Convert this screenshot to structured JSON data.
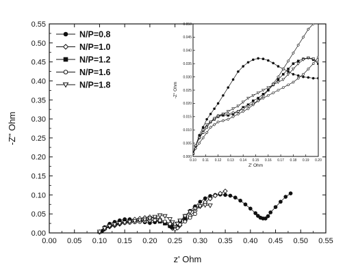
{
  "chart_data": {
    "type": "scatter",
    "title": "",
    "xlabel": "z' Ohm",
    "ylabel": "-Z'' Ohm",
    "xlim": [
      0.0,
      0.55
    ],
    "ylim": [
      0.0,
      0.55
    ],
    "xticks": [
      "0.00",
      "0.05",
      "0.10",
      "0.15",
      "0.20",
      "0.25",
      "0.30",
      "0.35",
      "0.40",
      "0.45",
      "0.50",
      "0.55"
    ],
    "yticks": [
      "0.00",
      "0.05",
      "0.10",
      "0.15",
      "0.20",
      "0.25",
      "0.30",
      "0.35",
      "0.40",
      "0.45",
      "0.50",
      "0.55"
    ],
    "grid": false,
    "legend": "top-left",
    "series": [
      {
        "name": "N/P=0.8",
        "marker": "filled-circle",
        "x": [
          0.105,
          0.11,
          0.12,
          0.13,
          0.14,
          0.15,
          0.16,
          0.17,
          0.18,
          0.19,
          0.2,
          0.21,
          0.22,
          0.23,
          0.24,
          0.245,
          0.25,
          0.255,
          0.26,
          0.27,
          0.28,
          0.29,
          0.3,
          0.31,
          0.32,
          0.33,
          0.34,
          0.35,
          0.36,
          0.37,
          0.38,
          0.39,
          0.4,
          0.41,
          0.415,
          0.42,
          0.425,
          0.43,
          0.435,
          0.44,
          0.45,
          0.46,
          0.47,
          0.48
        ],
        "y": [
          0.005,
          0.015,
          0.024,
          0.029,
          0.033,
          0.036,
          0.036,
          0.034,
          0.031,
          0.028,
          0.026,
          0.028,
          0.032,
          0.03,
          0.022,
          0.016,
          0.012,
          0.018,
          0.03,
          0.045,
          0.058,
          0.07,
          0.082,
          0.091,
          0.097,
          0.1,
          0.101,
          0.1,
          0.098,
          0.093,
          0.085,
          0.075,
          0.064,
          0.052,
          0.045,
          0.04,
          0.038,
          0.038,
          0.044,
          0.054,
          0.068,
          0.082,
          0.095,
          0.104
        ]
      },
      {
        "name": "N/P=1.0",
        "marker": "open-diamond",
        "x": [
          0.1,
          0.11,
          0.12,
          0.13,
          0.14,
          0.15,
          0.16,
          0.17,
          0.18,
          0.19,
          0.2,
          0.21,
          0.22,
          0.23,
          0.24,
          0.245,
          0.25,
          0.255,
          0.26,
          0.27,
          0.28,
          0.29,
          0.3,
          0.31,
          0.32,
          0.33,
          0.34,
          0.35
        ],
        "y": [
          0.002,
          0.01,
          0.016,
          0.019,
          0.023,
          0.027,
          0.032,
          0.036,
          0.038,
          0.04,
          0.042,
          0.04,
          0.036,
          0.028,
          0.018,
          0.012,
          0.01,
          0.013,
          0.02,
          0.032,
          0.045,
          0.058,
          0.07,
          0.081,
          0.09,
          0.098,
          0.104,
          0.11
        ]
      },
      {
        "name": "N/P=1.2",
        "marker": "filled-square",
        "x": [
          0.1,
          0.11,
          0.12,
          0.13,
          0.14,
          0.15,
          0.16,
          0.17,
          0.18,
          0.19,
          0.2,
          0.21,
          0.22,
          0.23,
          0.24,
          0.245,
          0.25,
          0.255,
          0.26,
          0.27
        ],
        "y": [
          0.003,
          0.012,
          0.019,
          0.023,
          0.027,
          0.029,
          0.03,
          0.031,
          0.032,
          0.033,
          0.034,
          0.033,
          0.03,
          0.025,
          0.018,
          0.015,
          0.018,
          0.024,
          0.032,
          0.038
        ]
      },
      {
        "name": "N/P=1.6",
        "marker": "open-circle",
        "x": [
          0.1,
          0.11,
          0.12,
          0.13,
          0.14,
          0.15,
          0.16,
          0.17,
          0.18,
          0.19,
          0.2,
          0.21,
          0.22,
          0.23,
          0.24,
          0.25,
          0.26,
          0.27,
          0.28,
          0.29
        ],
        "y": [
          0.002,
          0.011,
          0.018,
          0.021,
          0.024,
          0.026,
          0.027,
          0.028,
          0.029,
          0.031,
          0.033,
          0.034,
          0.033,
          0.03,
          0.024,
          0.018,
          0.022,
          0.03,
          0.04,
          0.05
        ]
      },
      {
        "name": "N/P=1.8",
        "marker": "open-triangle-down",
        "x": [
          0.1,
          0.11,
          0.12,
          0.13,
          0.14,
          0.15,
          0.16,
          0.17,
          0.18,
          0.19,
          0.2,
          0.21,
          0.22,
          0.23,
          0.24,
          0.245,
          0.25,
          0.255,
          0.26,
          0.27,
          0.28,
          0.29,
          0.3,
          0.31,
          0.32
        ],
        "y": [
          0.003,
          0.012,
          0.018,
          0.022,
          0.025,
          0.027,
          0.029,
          0.031,
          0.033,
          0.035,
          0.038,
          0.042,
          0.046,
          0.044,
          0.036,
          0.028,
          0.022,
          0.024,
          0.032,
          0.044,
          0.055,
          0.064,
          0.07,
          0.073,
          0.072
        ]
      }
    ],
    "inset": {
      "xlabel": "Z' Ohm",
      "ylabel": "-Z'' Ohm",
      "xlim": [
        0.1,
        0.2
      ],
      "ylim": [
        0.0,
        0.05
      ],
      "xticks": [
        "0.10",
        "0.11",
        "0.12",
        "0.13",
        "0.14",
        "0.15",
        "0.16",
        "0.17",
        "0.18",
        "0.19",
        "0.20"
      ],
      "yticks": [
        "0.000",
        "0.005",
        "0.010",
        "0.015",
        "0.020",
        "0.025",
        "0.030",
        "0.035",
        "0.040",
        "0.045",
        "0.050"
      ],
      "series": [
        {
          "name": "N/P=0.8",
          "marker": "filled-circle",
          "x": [
            0.1,
            0.102,
            0.105,
            0.108,
            0.111,
            0.114,
            0.117,
            0.12,
            0.124,
            0.128,
            0.132,
            0.136,
            0.14,
            0.144,
            0.148,
            0.152,
            0.156,
            0.16,
            0.164,
            0.168,
            0.172,
            0.176,
            0.18,
            0.184,
            0.188,
            0.192,
            0.196,
            0.2
          ],
          "y": [
            0.001,
            0.004,
            0.008,
            0.011,
            0.014,
            0.016,
            0.018,
            0.02,
            0.023,
            0.026,
            0.029,
            0.032,
            0.034,
            0.0355,
            0.0365,
            0.037,
            0.0368,
            0.0362,
            0.0352,
            0.034,
            0.033,
            0.032,
            0.031,
            0.0305,
            0.03,
            0.0298,
            0.0295,
            0.0295
          ]
        },
        {
          "name": "N/P=1.0",
          "marker": "open-diamond",
          "x": [
            0.1,
            0.102,
            0.105,
            0.108,
            0.111,
            0.114,
            0.117,
            0.12,
            0.124,
            0.128,
            0.132,
            0.136,
            0.14,
            0.144,
            0.148,
            0.152,
            0.156,
            0.16,
            0.164,
            0.168,
            0.172,
            0.176,
            0.18,
            0.184,
            0.188,
            0.192,
            0.196
          ],
          "y": [
            0.001,
            0.003,
            0.005,
            0.007,
            0.009,
            0.011,
            0.012,
            0.013,
            0.0135,
            0.014,
            0.015,
            0.016,
            0.017,
            0.018,
            0.0195,
            0.021,
            0.0228,
            0.025,
            0.0275,
            0.03,
            0.033,
            0.036,
            0.039,
            0.042,
            0.045,
            0.048,
            0.05
          ]
        },
        {
          "name": "N/P=1.2",
          "marker": "filled-square",
          "x": [
            0.1,
            0.102,
            0.105,
            0.108,
            0.111,
            0.114,
            0.117,
            0.12,
            0.124,
            0.128,
            0.132,
            0.136,
            0.14,
            0.144,
            0.148,
            0.152,
            0.156,
            0.16,
            0.164,
            0.168,
            0.172,
            0.176,
            0.18,
            0.184,
            0.188,
            0.192,
            0.196,
            0.2
          ],
          "y": [
            0.001,
            0.004,
            0.007,
            0.009,
            0.011,
            0.013,
            0.014,
            0.015,
            0.0155,
            0.0155,
            0.016,
            0.017,
            0.0185,
            0.0195,
            0.021,
            0.022,
            0.0235,
            0.025,
            0.027,
            0.029,
            0.031,
            0.033,
            0.035,
            0.036,
            0.0368,
            0.0372,
            0.0365,
            0.035
          ]
        },
        {
          "name": "N/P=1.6",
          "marker": "open-circle",
          "x": [
            0.1,
            0.102,
            0.105,
            0.108,
            0.111,
            0.114,
            0.117,
            0.12,
            0.124,
            0.128,
            0.132,
            0.136,
            0.14,
            0.144,
            0.148,
            0.152,
            0.156,
            0.16,
            0.164,
            0.168,
            0.172,
            0.176,
            0.18,
            0.184,
            0.188,
            0.192,
            0.196,
            0.2
          ],
          "y": [
            0.001,
            0.004,
            0.007,
            0.009,
            0.011,
            0.013,
            0.0145,
            0.0155,
            0.016,
            0.016,
            0.0165,
            0.017,
            0.018,
            0.019,
            0.02,
            0.021,
            0.022,
            0.023,
            0.024,
            0.025,
            0.026,
            0.027,
            0.028,
            0.0295,
            0.031,
            0.033,
            0.035,
            0.0375
          ]
        },
        {
          "name": "N/P=1.8",
          "marker": "open-triangle-down",
          "x": [
            0.1,
            0.102,
            0.105,
            0.108,
            0.111,
            0.114,
            0.117,
            0.12,
            0.124,
            0.128,
            0.132,
            0.136,
            0.14,
            0.144,
            0.148,
            0.152,
            0.156,
            0.16,
            0.164,
            0.168,
            0.172,
            0.176,
            0.18,
            0.184,
            0.188,
            0.192,
            0.196,
            0.2
          ],
          "y": [
            0.001,
            0.004,
            0.007,
            0.01,
            0.012,
            0.013,
            0.014,
            0.015,
            0.016,
            0.017,
            0.018,
            0.019,
            0.0205,
            0.022,
            0.023,
            0.024,
            0.025,
            0.026,
            0.027,
            0.028,
            0.029,
            0.031,
            0.033,
            0.035,
            0.0365,
            0.0372,
            0.0368,
            0.0355
          ]
        }
      ]
    }
  }
}
